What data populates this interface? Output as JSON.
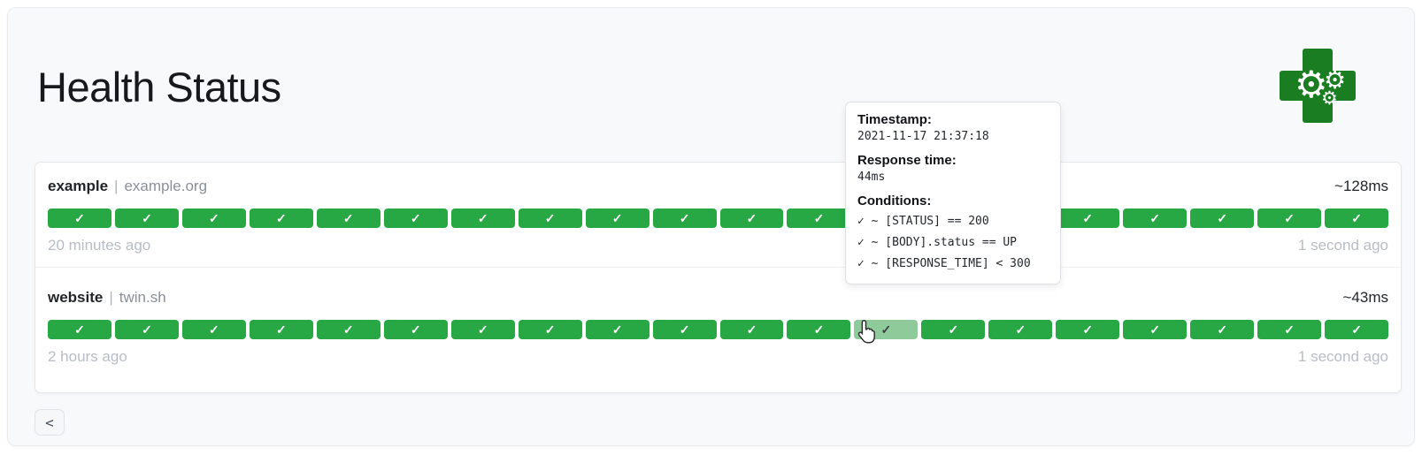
{
  "page": {
    "title": "Health Status"
  },
  "colors": {
    "success_green": "#28a745",
    "hover_green": "#8fca9b",
    "logo_green": "#1a7d21"
  },
  "logo": {
    "gear_glyph": "⚙"
  },
  "services": [
    {
      "name": "example",
      "separator": "|",
      "hostname": "example.org",
      "avg_response_time": "~128ms",
      "oldest_label": "20 minutes ago",
      "newest_label": "1 second ago",
      "checks": {
        "count": 20,
        "status_glyph": "✓",
        "hover_index": -1
      }
    },
    {
      "name": "website",
      "separator": "|",
      "hostname": "twin.sh",
      "avg_response_time": "~43ms",
      "oldest_label": "2 hours ago",
      "newest_label": "1 second ago",
      "checks": {
        "count": 20,
        "status_glyph": "✓",
        "hover_index": 12
      }
    }
  ],
  "tooltip": {
    "timestamp_label": "Timestamp:",
    "timestamp_value": "2021-11-17 21:37:18",
    "response_time_label": "Response time:",
    "response_time_value": "44ms",
    "conditions_label": "Conditions:",
    "conditions": [
      "✓ ~ [STATUS] == 200",
      "✓ ~ [BODY].status == UP",
      "✓ ~ [RESPONSE_TIME] < 300"
    ]
  },
  "pagination": {
    "previous_label": "<"
  }
}
